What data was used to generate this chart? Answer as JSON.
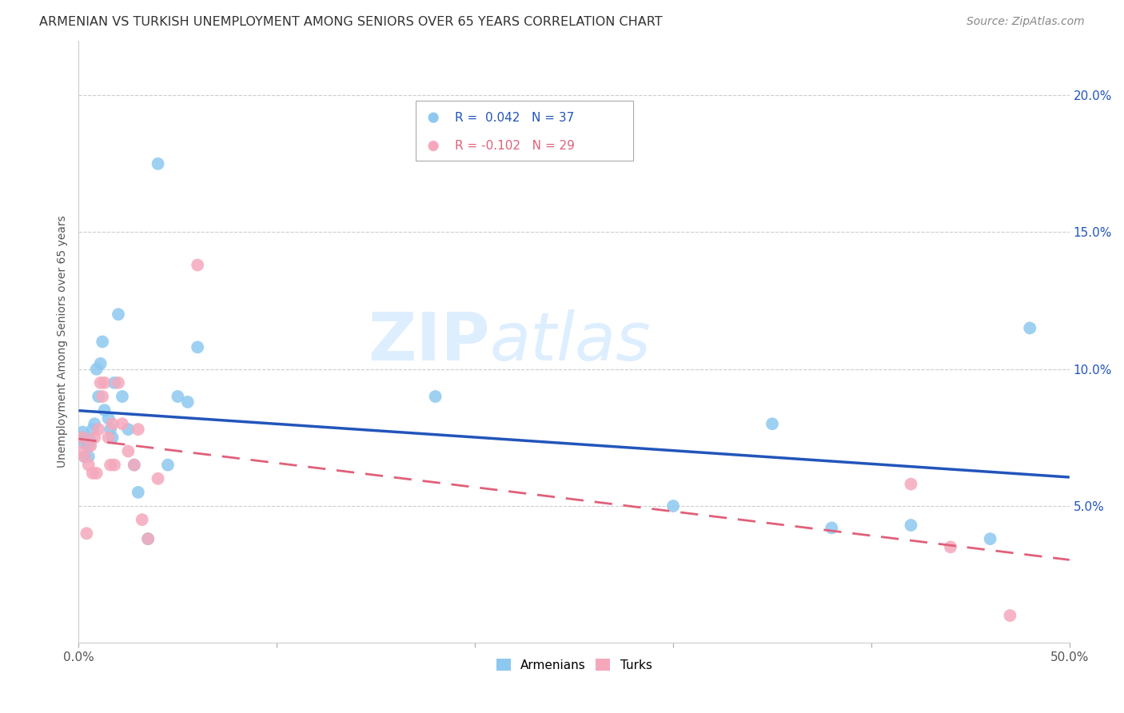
{
  "title": "ARMENIAN VS TURKISH UNEMPLOYMENT AMONG SENIORS OVER 65 YEARS CORRELATION CHART",
  "source": "Source: ZipAtlas.com",
  "ylabel": "Unemployment Among Seniors over 65 years",
  "xlim": [
    0.0,
    0.5
  ],
  "ylim": [
    0.0,
    0.22
  ],
  "xticks": [
    0.0,
    0.1,
    0.2,
    0.3,
    0.4,
    0.5
  ],
  "yticks": [
    0.05,
    0.1,
    0.15,
    0.2
  ],
  "xtick_labels": [
    "0.0%",
    "",
    "",
    "",
    "",
    "50.0%"
  ],
  "ytick_labels_right": [
    "5.0%",
    "10.0%",
    "15.0%",
    "20.0%"
  ],
  "legend_labels": [
    "Armenians",
    "Turks"
  ],
  "legend_r_armenians": "R =  0.042",
  "legend_n_armenians": "N = 37",
  "legend_r_turks": "R = -0.102",
  "legend_n_turks": "N = 29",
  "armenian_color": "#8DC8F0",
  "turk_color": "#F5A8BC",
  "armenian_line_color": "#2255BB",
  "turk_line_color": "#E0607A",
  "watermark_zip": "ZIP",
  "watermark_atlas": "atlas",
  "watermark_color": "#DDEEFF",
  "background_color": "#FFFFFF",
  "armenians_x": [
    0.001,
    0.002,
    0.003,
    0.003,
    0.004,
    0.005,
    0.005,
    0.006,
    0.007,
    0.008,
    0.009,
    0.01,
    0.011,
    0.012,
    0.013,
    0.015,
    0.016,
    0.017,
    0.018,
    0.02,
    0.022,
    0.025,
    0.028,
    0.03,
    0.035,
    0.04,
    0.045,
    0.05,
    0.055,
    0.06,
    0.18,
    0.3,
    0.35,
    0.38,
    0.42,
    0.46,
    0.48
  ],
  "armenians_y": [
    0.075,
    0.077,
    0.073,
    0.068,
    0.074,
    0.072,
    0.068,
    0.074,
    0.078,
    0.08,
    0.1,
    0.09,
    0.102,
    0.11,
    0.085,
    0.082,
    0.078,
    0.075,
    0.095,
    0.12,
    0.09,
    0.078,
    0.065,
    0.055,
    0.038,
    0.175,
    0.065,
    0.09,
    0.088,
    0.108,
    0.09,
    0.05,
    0.08,
    0.042,
    0.043,
    0.038,
    0.115
  ],
  "turks_x": [
    0.001,
    0.002,
    0.003,
    0.004,
    0.005,
    0.006,
    0.007,
    0.008,
    0.009,
    0.01,
    0.011,
    0.012,
    0.013,
    0.015,
    0.016,
    0.017,
    0.018,
    0.02,
    0.022,
    0.025,
    0.028,
    0.03,
    0.032,
    0.035,
    0.04,
    0.06,
    0.42,
    0.44,
    0.47
  ],
  "turks_y": [
    0.07,
    0.075,
    0.068,
    0.04,
    0.065,
    0.072,
    0.062,
    0.075,
    0.062,
    0.078,
    0.095,
    0.09,
    0.095,
    0.075,
    0.065,
    0.08,
    0.065,
    0.095,
    0.08,
    0.07,
    0.065,
    0.078,
    0.045,
    0.038,
    0.06,
    0.138,
    0.058,
    0.035,
    0.01
  ],
  "marker_size": 130
}
